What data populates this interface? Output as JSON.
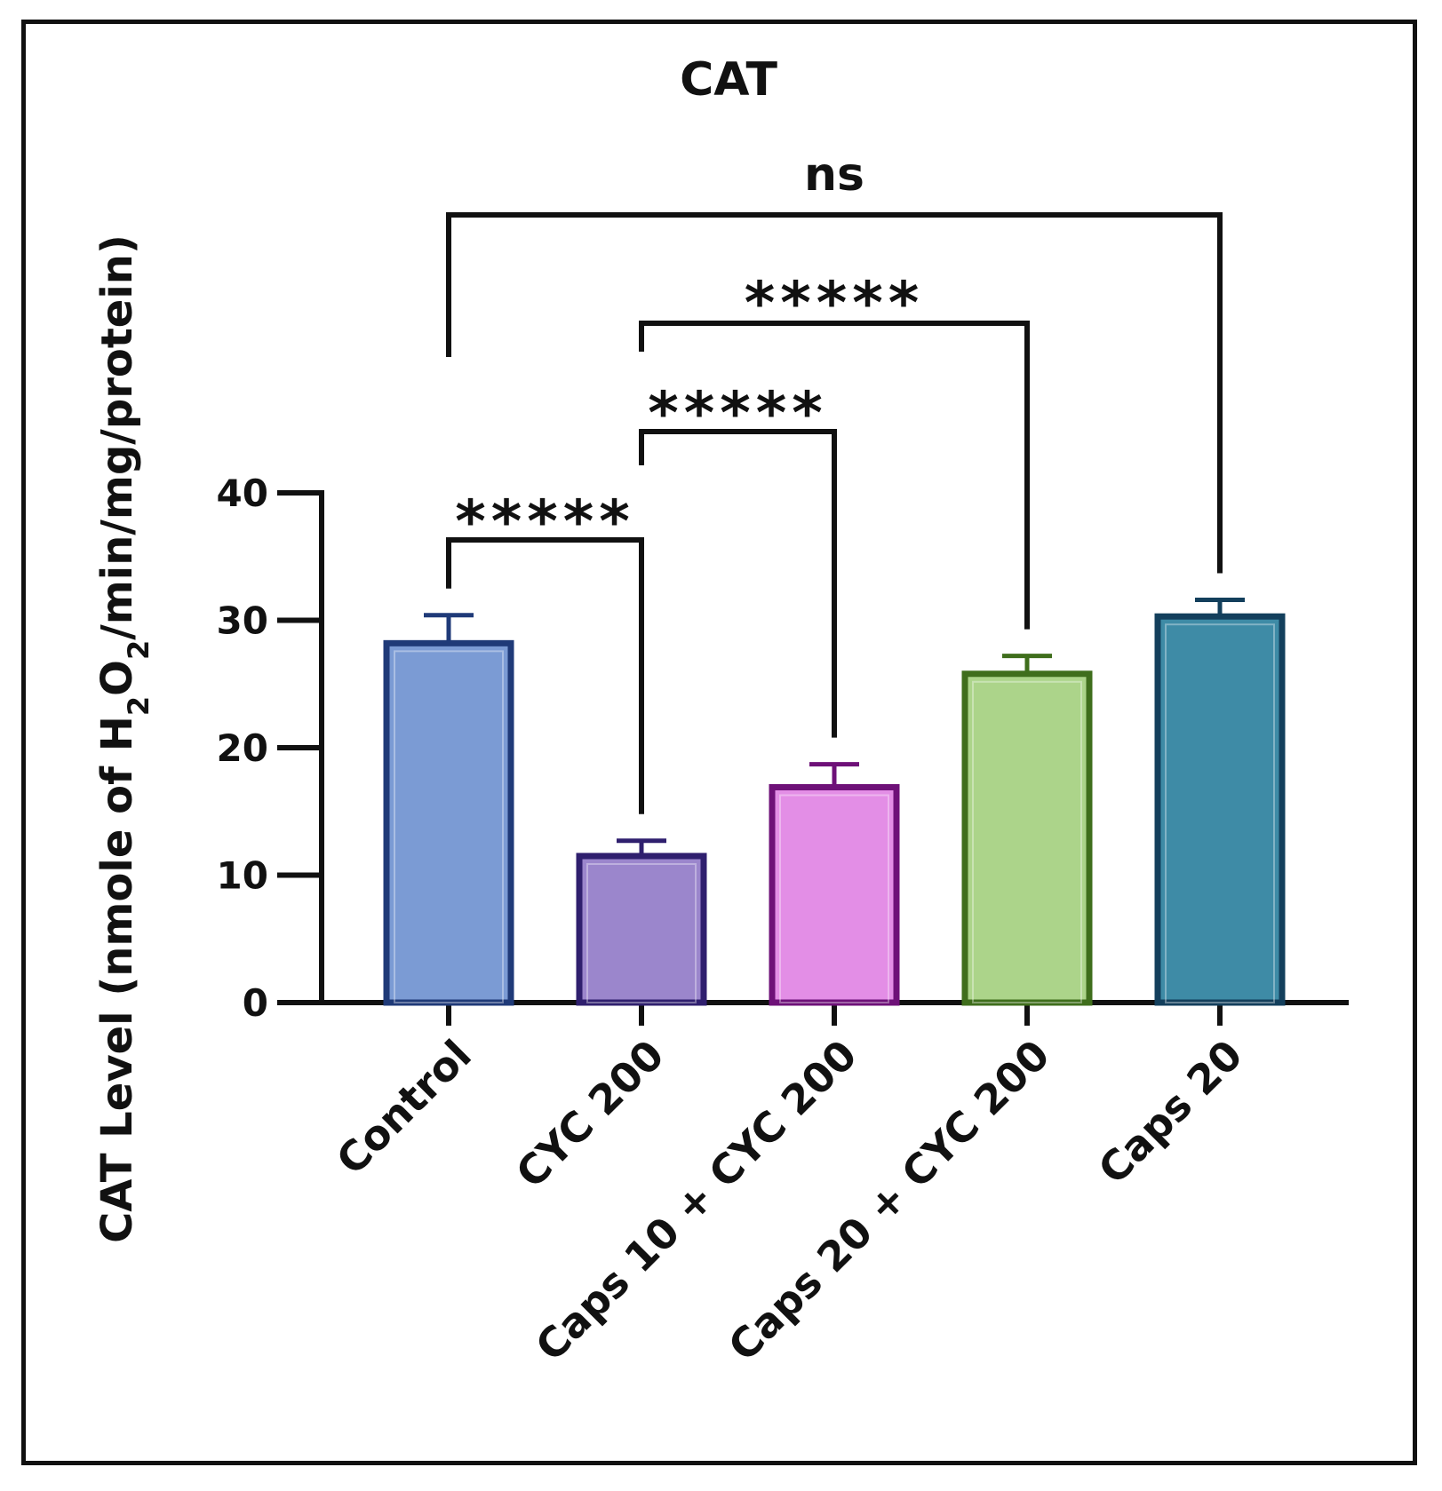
{
  "chart_data": {
    "type": "bar",
    "title": "CAT",
    "ylabel": {
      "prefix": "CAT Level  (nmole of H",
      "sub1": "2",
      "mid": "O",
      "sub2": "2",
      "suffix": "/min/mg/protein)"
    },
    "xlabel": "",
    "ylim": [
      0,
      40
    ],
    "yticks": [
      "0",
      "10",
      "20",
      "30",
      "40"
    ],
    "categories": [
      "Control",
      "CYC 200",
      "Caps 10 + CYC 200",
      "Caps 20 + CYC 200",
      "Caps 20"
    ],
    "values": [
      28.2,
      11.5,
      16.9,
      25.8,
      30.3
    ],
    "errors": [
      2.2,
      1.2,
      1.8,
      1.4,
      1.3
    ],
    "colors": {
      "fill": [
        "#7b9bd4",
        "#9b86cc",
        "#e38ee6",
        "#acd48a",
        "#3e8ba6"
      ],
      "edge": [
        "#1f3a78",
        "#2f1f6e",
        "#6e1178",
        "#3f6e1c",
        "#133f5c"
      ]
    },
    "comparisons": [
      {
        "from": 0,
        "to": 1,
        "label": "*****"
      },
      {
        "from": 1,
        "to": 2,
        "label": "*****"
      },
      {
        "from": 1,
        "to": 3,
        "label": "*****"
      },
      {
        "from": 0,
        "to": 4,
        "label": "ns"
      }
    ],
    "grid": false,
    "legend": "none"
  }
}
